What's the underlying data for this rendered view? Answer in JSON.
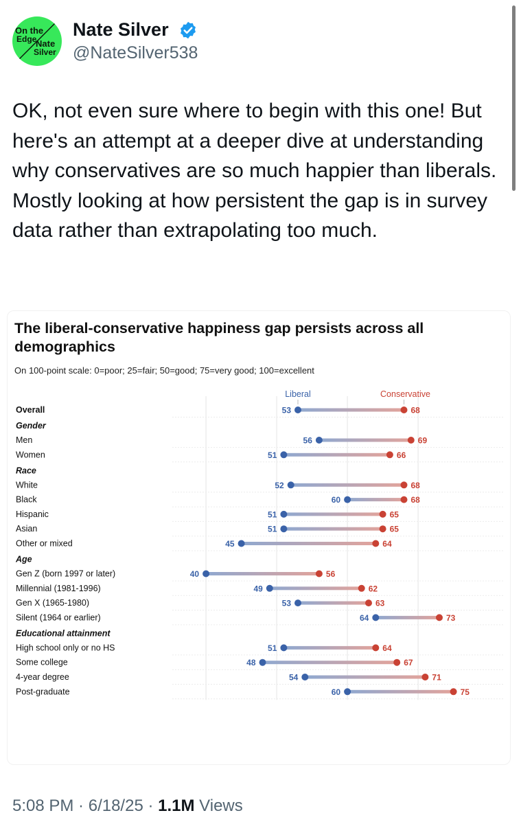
{
  "author": {
    "name": "Nate Silver",
    "handle": "@NateSilver538",
    "avatar_text": [
      "On the",
      "Edge",
      "Nate",
      "Silver"
    ]
  },
  "tweet": {
    "text": "OK, not even sure where to begin with this one! But here's an attempt at a deeper dive at understanding why conservatives are so much happier than liberals. Mostly looking at how persistent the gap is in survey data rather than extrapolating too much."
  },
  "footer": {
    "time": "5:08 PM",
    "date": "6/18/25",
    "views_count": "1.1M",
    "views_label": "Views"
  },
  "colors": {
    "liberal": "#3a62a8",
    "conservative": "#c94234",
    "verified": "#1d9bf0",
    "avatar_bg": "#37e85a"
  },
  "chart_data": {
    "type": "dumbbell",
    "title": "The liberal-conservative happiness gap persists across all demographics",
    "subtitle": "On 100-point scale: 0=poor; 25=fair; 50=good; 75=very good; 100=excellent",
    "series": [
      {
        "name": "Liberal",
        "color": "#3a62a8"
      },
      {
        "name": "Conservative",
        "color": "#c94234"
      }
    ],
    "xlim": [
      30,
      80
    ],
    "groups": [
      {
        "heading": "",
        "rows": [
          {
            "label": "Overall",
            "liberal": 53,
            "conservative": 68
          }
        ]
      },
      {
        "heading": "Gender",
        "rows": [
          {
            "label": "Men",
            "liberal": 56,
            "conservative": 69
          },
          {
            "label": "Women",
            "liberal": 51,
            "conservative": 66
          }
        ]
      },
      {
        "heading": "Race",
        "rows": [
          {
            "label": "White",
            "liberal": 52,
            "conservative": 68
          },
          {
            "label": "Black",
            "liberal": 60,
            "conservative": 68
          },
          {
            "label": "Hispanic",
            "liberal": 51,
            "conservative": 65
          },
          {
            "label": "Asian",
            "liberal": 51,
            "conservative": 65
          },
          {
            "label": "Other or mixed",
            "liberal": 45,
            "conservative": 64
          }
        ]
      },
      {
        "heading": "Age",
        "rows": [
          {
            "label": "Gen Z (born 1997 or later)",
            "liberal": 40,
            "conservative": 56
          },
          {
            "label": "Millennial (1981-1996)",
            "liberal": 49,
            "conservative": 62
          },
          {
            "label": "Gen X (1965-1980)",
            "liberal": 53,
            "conservative": 63
          },
          {
            "label": "Silent (1964 or earlier)",
            "liberal": 64,
            "conservative": 73
          }
        ]
      },
      {
        "heading": "Educational attainment",
        "rows": [
          {
            "label": "High school only or no HS",
            "liberal": 51,
            "conservative": 64
          },
          {
            "label": "Some college",
            "liberal": 48,
            "conservative": 67
          },
          {
            "label": "4-year degree",
            "liberal": 54,
            "conservative": 71
          },
          {
            "label": "Post-graduate",
            "liberal": 60,
            "conservative": 75
          }
        ]
      }
    ]
  }
}
